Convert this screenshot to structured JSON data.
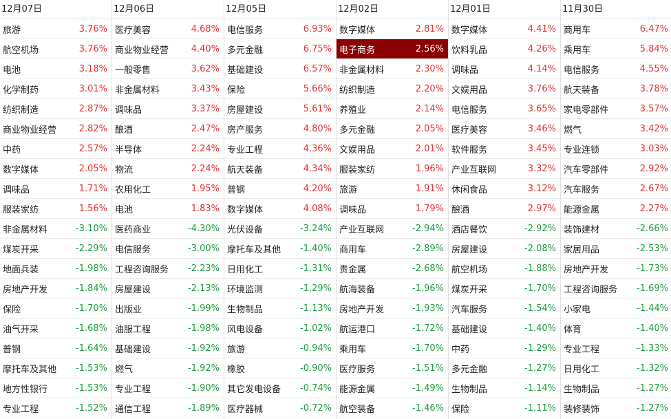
{
  "colors": {
    "up": "#e83030",
    "down": "#1e9e3e",
    "selected_bg": "#8b0000"
  },
  "columns": [
    {
      "date": "12月07日",
      "rows": [
        {
          "name": "旅游",
          "pct": "3.76%"
        },
        {
          "name": "航空机场",
          "pct": "3.76%"
        },
        {
          "name": "电池",
          "pct": "3.18%"
        },
        {
          "name": "化学制药",
          "pct": "3.01%"
        },
        {
          "name": "纺织制造",
          "pct": "2.87%"
        },
        {
          "name": "商业物业经营",
          "pct": "2.82%"
        },
        {
          "name": "中药",
          "pct": "2.57%"
        },
        {
          "name": "数字媒体",
          "pct": "2.05%"
        },
        {
          "name": "调味品",
          "pct": "1.71%"
        },
        {
          "name": "服装家纺",
          "pct": "1.56%"
        },
        {
          "name": "非金属材料",
          "pct": "-3.10%"
        },
        {
          "name": "煤炭开采",
          "pct": "-2.29%"
        },
        {
          "name": "地面兵装",
          "pct": "-1.98%"
        },
        {
          "name": "房地产开发",
          "pct": "-1.84%"
        },
        {
          "name": "保险",
          "pct": "-1.70%"
        },
        {
          "name": "油气开采",
          "pct": "-1.68%"
        },
        {
          "name": "普钢",
          "pct": "-1.64%"
        },
        {
          "name": "摩托车及其他",
          "pct": "-1.53%"
        },
        {
          "name": "地方性银行",
          "pct": "-1.53%"
        },
        {
          "name": "专业工程",
          "pct": "-1.52%"
        }
      ]
    },
    {
      "date": "12月06日",
      "rows": [
        {
          "name": "医疗美容",
          "pct": "4.68%"
        },
        {
          "name": "商业物业经营",
          "pct": "4.40%"
        },
        {
          "name": "一般零售",
          "pct": "3.62%"
        },
        {
          "name": "非金属材料",
          "pct": "3.43%"
        },
        {
          "name": "调味品",
          "pct": "3.37%"
        },
        {
          "name": "酿酒",
          "pct": "2.47%"
        },
        {
          "name": "半导体",
          "pct": "2.24%"
        },
        {
          "name": "物流",
          "pct": "2.24%"
        },
        {
          "name": "农用化工",
          "pct": "1.95%"
        },
        {
          "name": "电池",
          "pct": "1.83%"
        },
        {
          "name": "医药商业",
          "pct": "-4.30%"
        },
        {
          "name": "电信服务",
          "pct": "-3.00%"
        },
        {
          "name": "工程咨询服务",
          "pct": "-2.23%"
        },
        {
          "name": "房屋建设",
          "pct": "-2.13%"
        },
        {
          "name": "出版业",
          "pct": "-1.99%"
        },
        {
          "name": "油服工程",
          "pct": "-1.98%"
        },
        {
          "name": "基础建设",
          "pct": "-1.92%"
        },
        {
          "name": "燃气",
          "pct": "-1.92%"
        },
        {
          "name": "专业工程",
          "pct": "-1.90%"
        },
        {
          "name": "通信工程",
          "pct": "-1.89%"
        }
      ]
    },
    {
      "date": "12月05日",
      "rows": [
        {
          "name": "电信服务",
          "pct": "6.93%"
        },
        {
          "name": "多元金融",
          "pct": "6.75%"
        },
        {
          "name": "基础建设",
          "pct": "6.57%"
        },
        {
          "name": "保险",
          "pct": "5.66%"
        },
        {
          "name": "房屋建设",
          "pct": "5.61%"
        },
        {
          "name": "房产服务",
          "pct": "4.80%"
        },
        {
          "name": "专业工程",
          "pct": "4.36%"
        },
        {
          "name": "航天装备",
          "pct": "4.34%"
        },
        {
          "name": "普钢",
          "pct": "4.20%"
        },
        {
          "name": "数字媒体",
          "pct": "4.08%"
        },
        {
          "name": "光伏设备",
          "pct": "-3.24%"
        },
        {
          "name": "摩托车及其他",
          "pct": "-1.40%"
        },
        {
          "name": "日用化工",
          "pct": "-1.31%"
        },
        {
          "name": "环境监测",
          "pct": "-1.29%"
        },
        {
          "name": "生物制品",
          "pct": "-1.13%"
        },
        {
          "name": "风电设备",
          "pct": "-1.02%"
        },
        {
          "name": "旅游",
          "pct": "-0.94%"
        },
        {
          "name": "橡胶",
          "pct": "-0.90%"
        },
        {
          "name": "其它发电设备",
          "pct": "-0.74%"
        },
        {
          "name": "医疗器械",
          "pct": "-0.72%"
        }
      ]
    },
    {
      "date": "12月02日",
      "rows": [
        {
          "name": "数字媒体",
          "pct": "2.81%"
        },
        {
          "name": "电子商务",
          "pct": "2.56%",
          "selected": true
        },
        {
          "name": "非金属材料",
          "pct": "2.30%"
        },
        {
          "name": "纺织制造",
          "pct": "2.20%"
        },
        {
          "name": "养殖业",
          "pct": "2.14%"
        },
        {
          "name": "多元金融",
          "pct": "2.05%"
        },
        {
          "name": "文娱用品",
          "pct": "2.01%"
        },
        {
          "name": "服装家纺",
          "pct": "1.96%"
        },
        {
          "name": "旅游",
          "pct": "1.91%"
        },
        {
          "name": "调味品",
          "pct": "1.79%"
        },
        {
          "name": "产业互联网",
          "pct": "-2.94%"
        },
        {
          "name": "商用车",
          "pct": "-2.89%"
        },
        {
          "name": "贵金属",
          "pct": "-2.68%"
        },
        {
          "name": "航海装备",
          "pct": "-1.96%"
        },
        {
          "name": "房地产开发",
          "pct": "-1.93%"
        },
        {
          "name": "航运港口",
          "pct": "-1.72%"
        },
        {
          "name": "乘用车",
          "pct": "-1.70%"
        },
        {
          "name": "医疗服务",
          "pct": "-1.51%"
        },
        {
          "name": "能源金属",
          "pct": "-1.49%"
        },
        {
          "name": "航空装备",
          "pct": "-1.46%"
        }
      ]
    },
    {
      "date": "12月01日",
      "rows": [
        {
          "name": "数字媒体",
          "pct": "4.41%"
        },
        {
          "name": "饮料乳品",
          "pct": "4.26%"
        },
        {
          "name": "调味品",
          "pct": "4.14%"
        },
        {
          "name": "文娱用品",
          "pct": "3.76%"
        },
        {
          "name": "电信服务",
          "pct": "3.65%"
        },
        {
          "name": "医疗美容",
          "pct": "3.46%"
        },
        {
          "name": "软件服务",
          "pct": "3.45%"
        },
        {
          "name": "产业互联网",
          "pct": "3.32%"
        },
        {
          "name": "休闲食品",
          "pct": "3.12%"
        },
        {
          "name": "酿酒",
          "pct": "2.97%"
        },
        {
          "name": "酒店餐饮",
          "pct": "-2.92%"
        },
        {
          "name": "房屋建设",
          "pct": "-2.08%"
        },
        {
          "name": "航空机场",
          "pct": "-1.88%"
        },
        {
          "name": "煤炭开采",
          "pct": "-1.70%"
        },
        {
          "name": "汽车服务",
          "pct": "-1.54%"
        },
        {
          "name": "基础建设",
          "pct": "-1.40%"
        },
        {
          "name": "中药",
          "pct": "-1.29%"
        },
        {
          "name": "多元金融",
          "pct": "-1.27%"
        },
        {
          "name": "生物制品",
          "pct": "-1.14%"
        },
        {
          "name": "保险",
          "pct": "-1.11%"
        }
      ]
    },
    {
      "date": "11月30日",
      "rows": [
        {
          "name": "商用车",
          "pct": "6.47%"
        },
        {
          "name": "乘用车",
          "pct": "5.84%"
        },
        {
          "name": "电信服务",
          "pct": "4.55%"
        },
        {
          "name": "航天装备",
          "pct": "3.78%"
        },
        {
          "name": "家电零部件",
          "pct": "3.57%"
        },
        {
          "name": "燃气",
          "pct": "3.42%"
        },
        {
          "name": "专业连锁",
          "pct": "3.03%"
        },
        {
          "name": "汽车零部件",
          "pct": "2.92%"
        },
        {
          "name": "汽车服务",
          "pct": "2.67%"
        },
        {
          "name": "能源金属",
          "pct": "2.27%"
        },
        {
          "name": "装饰建材",
          "pct": "-2.66%"
        },
        {
          "name": "家居用品",
          "pct": "-2.53%"
        },
        {
          "name": "房地产开发",
          "pct": "-1.73%"
        },
        {
          "name": "工程咨询服务",
          "pct": "-1.69%"
        },
        {
          "name": "小家电",
          "pct": "-1.44%"
        },
        {
          "name": "体育",
          "pct": "-1.40%"
        },
        {
          "name": "专业工程",
          "pct": "-1.33%"
        },
        {
          "name": "日用化工",
          "pct": "-1.32%"
        },
        {
          "name": "生物制品",
          "pct": "-1.27%"
        },
        {
          "name": "装修装饰",
          "pct": "-1.27%"
        }
      ]
    }
  ]
}
